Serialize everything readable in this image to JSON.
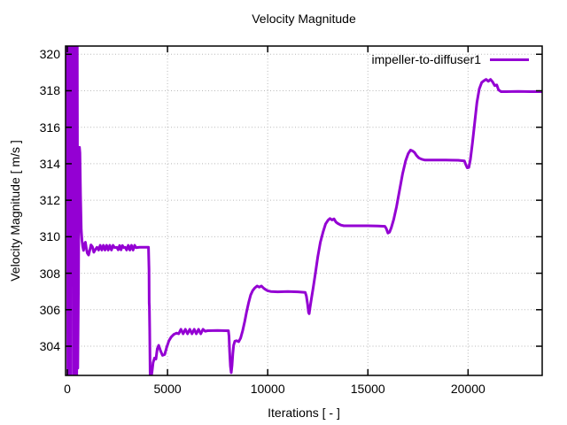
{
  "title": "Velocity Magnitude",
  "legend": {
    "series_label": "impeller-to-diffuser1",
    "position": "top-right"
  },
  "colors": {
    "line": "#9400d3",
    "grid": "#b8b8b8",
    "axis": "#000000",
    "background": "#ffffff",
    "text": "#000000"
  },
  "chart_data": {
    "type": "line",
    "title": "Velocity Magnitude",
    "xlabel": "Iterations [ - ]",
    "ylabel": "Velocity Magnitude [ m/s ]",
    "xlim": [
      0,
      23700
    ],
    "ylim": [
      302.4,
      320.45
    ],
    "x_ticks": [
      0,
      5000,
      10000,
      15000,
      20000
    ],
    "y_ticks": [
      304,
      306,
      308,
      310,
      312,
      314,
      316,
      318,
      320
    ],
    "grid": true,
    "grid_style": "dotted",
    "legend_position": "top-right inside",
    "series": [
      {
        "name": "impeller-to-diffuser1",
        "color": "#9400d3",
        "points": [
          [
            0,
            321
          ],
          [
            25,
            302
          ],
          [
            50,
            321
          ],
          [
            75,
            302
          ],
          [
            100,
            321
          ],
          [
            125,
            302
          ],
          [
            150,
            321
          ],
          [
            175,
            302
          ],
          [
            195,
            321
          ],
          [
            210,
            322
          ],
          [
            305,
            322
          ],
          [
            320,
            302
          ],
          [
            345,
            321
          ],
          [
            370,
            302
          ],
          [
            395,
            321
          ],
          [
            420,
            302
          ],
          [
            445,
            321
          ],
          [
            470,
            302
          ],
          [
            495,
            321
          ],
          [
            520,
            302.8
          ],
          [
            555,
            307.5
          ],
          [
            585,
            313.5
          ],
          [
            605,
            314.9
          ],
          [
            630,
            314.6
          ],
          [
            660,
            312.3
          ],
          [
            695,
            310.4
          ],
          [
            730,
            309.8
          ],
          [
            770,
            309.45
          ],
          [
            810,
            309.25
          ],
          [
            855,
            309.6
          ],
          [
            900,
            309.7
          ],
          [
            950,
            309.35
          ],
          [
            1000,
            309.1
          ],
          [
            1060,
            309.0
          ],
          [
            1120,
            309.25
          ],
          [
            1180,
            309.55
          ],
          [
            1250,
            309.45
          ],
          [
            1320,
            309.15
          ],
          [
            1400,
            309.3
          ],
          [
            1480,
            309.42
          ],
          [
            1560,
            309.27
          ],
          [
            1640,
            309.53
          ],
          [
            1720,
            309.27
          ],
          [
            1800,
            309.53
          ],
          [
            1880,
            309.27
          ],
          [
            1960,
            309.53
          ],
          [
            2040,
            309.27
          ],
          [
            2120,
            309.53
          ],
          [
            2200,
            309.27
          ],
          [
            2280,
            309.53
          ],
          [
            2360,
            309.4
          ],
          [
            2470,
            309.42
          ],
          [
            2540,
            309.28
          ],
          [
            2610,
            309.52
          ],
          [
            2680,
            309.28
          ],
          [
            2750,
            309.52
          ],
          [
            2820,
            309.4
          ],
          [
            2890,
            309.42
          ],
          [
            2960,
            309.27
          ],
          [
            3040,
            309.53
          ],
          [
            3120,
            309.27
          ],
          [
            3200,
            309.53
          ],
          [
            3280,
            309.27
          ],
          [
            3360,
            309.53
          ],
          [
            3430,
            309.4
          ],
          [
            3600,
            309.42
          ],
          [
            4050,
            309.42
          ],
          [
            4075,
            308.2
          ],
          [
            4085,
            306.35
          ],
          [
            4095,
            306.2
          ],
          [
            4110,
            304.8
          ],
          [
            4135,
            302.35
          ],
          [
            4175,
            302.2
          ],
          [
            4225,
            302.6
          ],
          [
            4280,
            303.1
          ],
          [
            4350,
            303.35
          ],
          [
            4420,
            303.3
          ],
          [
            4490,
            303.85
          ],
          [
            4560,
            304.05
          ],
          [
            4650,
            303.75
          ],
          [
            4750,
            303.5
          ],
          [
            4860,
            303.55
          ],
          [
            4960,
            303.95
          ],
          [
            5070,
            304.3
          ],
          [
            5180,
            304.5
          ],
          [
            5320,
            304.65
          ],
          [
            5450,
            304.72
          ],
          [
            5560,
            304.68
          ],
          [
            5670,
            304.93
          ],
          [
            5780,
            304.68
          ],
          [
            5890,
            304.93
          ],
          [
            6000,
            304.68
          ],
          [
            6110,
            304.93
          ],
          [
            6220,
            304.68
          ],
          [
            6330,
            304.93
          ],
          [
            6440,
            304.68
          ],
          [
            6550,
            304.93
          ],
          [
            6660,
            304.68
          ],
          [
            6770,
            304.93
          ],
          [
            6880,
            304.82
          ],
          [
            7000,
            304.85
          ],
          [
            7500,
            304.86
          ],
          [
            8040,
            304.85
          ],
          [
            8070,
            304.55
          ],
          [
            8100,
            303.7
          ],
          [
            8140,
            302.9
          ],
          [
            8180,
            302.55
          ],
          [
            8220,
            302.95
          ],
          [
            8260,
            303.6
          ],
          [
            8300,
            304.05
          ],
          [
            8360,
            304.28
          ],
          [
            8450,
            304.3
          ],
          [
            8550,
            304.25
          ],
          [
            8650,
            304.45
          ],
          [
            8750,
            304.85
          ],
          [
            8850,
            305.35
          ],
          [
            8950,
            305.9
          ],
          [
            9050,
            306.4
          ],
          [
            9150,
            306.8
          ],
          [
            9250,
            307.05
          ],
          [
            9360,
            307.2
          ],
          [
            9470,
            307.3
          ],
          [
            9580,
            307.24
          ],
          [
            9690,
            307.3
          ],
          [
            9800,
            307.18
          ],
          [
            9900,
            307.1
          ],
          [
            10000,
            307.04
          ],
          [
            10150,
            307.0
          ],
          [
            10500,
            306.98
          ],
          [
            11000,
            307.0
          ],
          [
            11500,
            306.98
          ],
          [
            11870,
            306.95
          ],
          [
            11930,
            306.75
          ],
          [
            11990,
            306.3
          ],
          [
            12040,
            305.85
          ],
          [
            12070,
            305.78
          ],
          [
            12110,
            306.1
          ],
          [
            12180,
            306.6
          ],
          [
            12270,
            307.2
          ],
          [
            12380,
            308.0
          ],
          [
            12500,
            308.9
          ],
          [
            12630,
            309.7
          ],
          [
            12760,
            310.25
          ],
          [
            12890,
            310.7
          ],
          [
            13010,
            310.9
          ],
          [
            13110,
            311.0
          ],
          [
            13210,
            310.92
          ],
          [
            13310,
            310.98
          ],
          [
            13410,
            310.8
          ],
          [
            13510,
            310.72
          ],
          [
            13650,
            310.64
          ],
          [
            13800,
            310.6
          ],
          [
            14300,
            310.6
          ],
          [
            15000,
            310.6
          ],
          [
            15500,
            310.59
          ],
          [
            15850,
            310.57
          ],
          [
            15920,
            310.45
          ],
          [
            16000,
            310.2
          ],
          [
            16080,
            310.25
          ],
          [
            16170,
            310.5
          ],
          [
            16290,
            310.95
          ],
          [
            16430,
            311.65
          ],
          [
            16580,
            312.55
          ],
          [
            16730,
            313.45
          ],
          [
            16880,
            314.15
          ],
          [
            17010,
            314.55
          ],
          [
            17130,
            314.75
          ],
          [
            17230,
            314.7
          ],
          [
            17330,
            314.62
          ],
          [
            17430,
            314.45
          ],
          [
            17540,
            314.32
          ],
          [
            17680,
            314.25
          ],
          [
            17850,
            314.2
          ],
          [
            18300,
            314.2
          ],
          [
            18900,
            314.2
          ],
          [
            19500,
            314.19
          ],
          [
            19820,
            314.15
          ],
          [
            19890,
            313.95
          ],
          [
            19960,
            313.78
          ],
          [
            20040,
            313.8
          ],
          [
            20120,
            314.25
          ],
          [
            20220,
            315.15
          ],
          [
            20330,
            316.25
          ],
          [
            20440,
            317.35
          ],
          [
            20560,
            318.1
          ],
          [
            20680,
            318.45
          ],
          [
            20790,
            318.55
          ],
          [
            20900,
            318.62
          ],
          [
            21010,
            318.52
          ],
          [
            21120,
            318.62
          ],
          [
            21230,
            318.48
          ],
          [
            21330,
            318.28
          ],
          [
            21430,
            318.32
          ],
          [
            21520,
            318.05
          ],
          [
            21650,
            317.95
          ],
          [
            21900,
            317.95
          ],
          [
            22500,
            317.96
          ],
          [
            23100,
            317.95
          ],
          [
            23700,
            317.95
          ]
        ]
      }
    ]
  }
}
